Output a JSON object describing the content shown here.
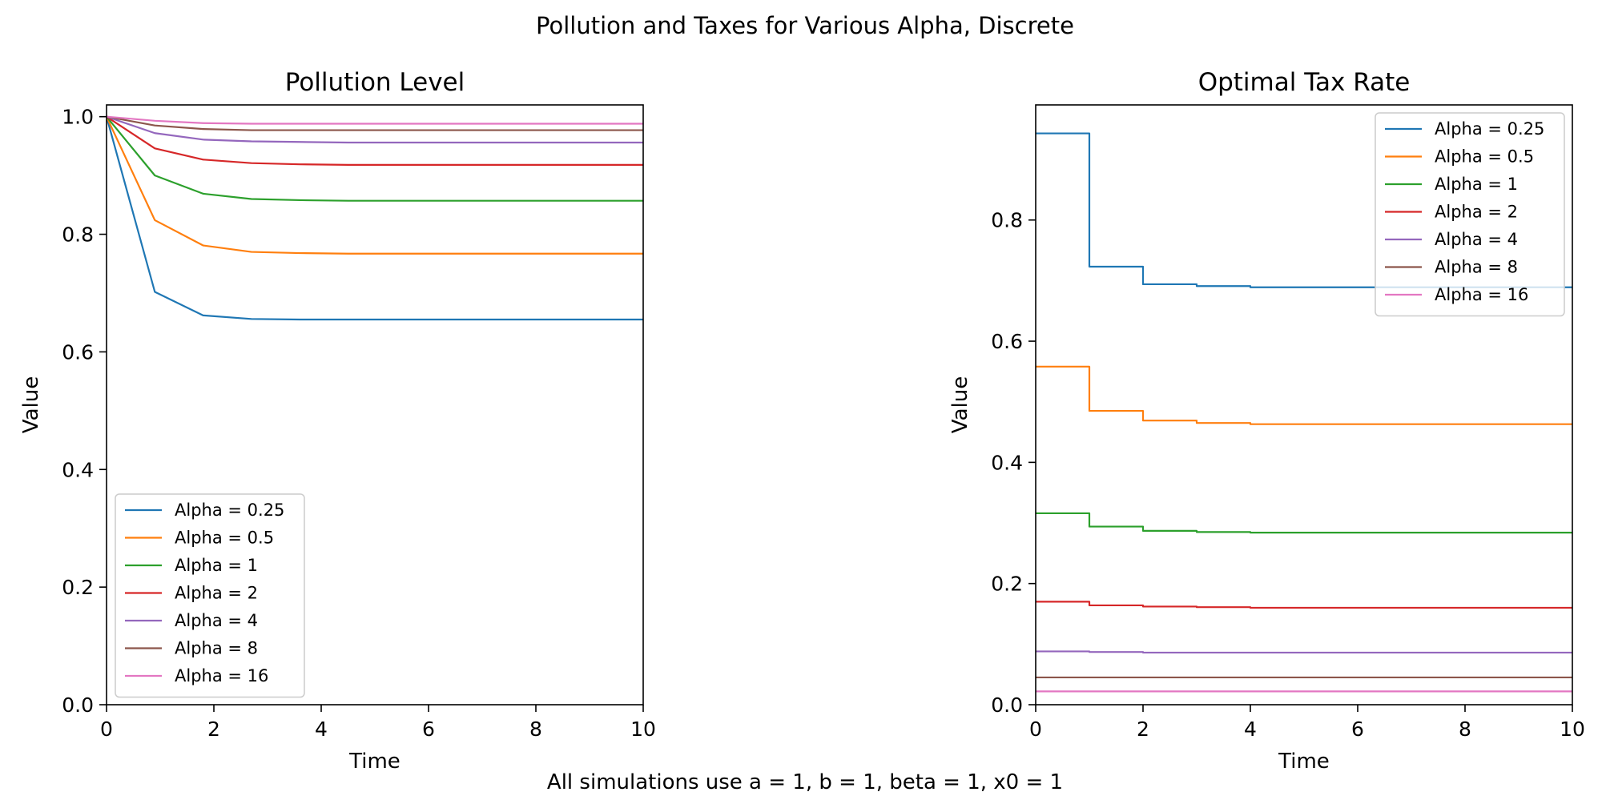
{
  "figure": {
    "suptitle": "Pollution and Taxes for Various Alpha, Discrete",
    "footnote": "All simulations use a = 1, b = 1, beta = 1, x0 = 1"
  },
  "chart_data": [
    {
      "type": "line",
      "title": "Pollution Level",
      "xlabel": "Time",
      "ylabel": "Value",
      "xlim": [
        0,
        10
      ],
      "ylim": [
        0,
        1.02
      ],
      "xticks": [
        "0",
        "2",
        "4",
        "6",
        "8",
        "10"
      ],
      "yticks": [
        "0.0",
        "0.2",
        "0.4",
        "0.6",
        "0.8",
        "1.0"
      ],
      "legend_position": "lower-left",
      "grid": false,
      "x": [
        0,
        0.9,
        1.8,
        2.7,
        3.6,
        4.5,
        5.4,
        6.3,
        7.2,
        8.1,
        9.0,
        10.0
      ],
      "series": [
        {
          "name": "Alpha = 0.25",
          "color": "#1f77b4",
          "values": [
            1.0,
            0.702,
            0.662,
            0.656,
            0.655,
            0.655,
            0.655,
            0.655,
            0.655,
            0.655,
            0.655,
            0.655
          ]
        },
        {
          "name": "Alpha = 0.5",
          "color": "#ff7f0e",
          "values": [
            1.0,
            0.824,
            0.781,
            0.77,
            0.768,
            0.767,
            0.767,
            0.767,
            0.767,
            0.767,
            0.767,
            0.767
          ]
        },
        {
          "name": "Alpha = 1",
          "color": "#2ca02c",
          "values": [
            1.0,
            0.9,
            0.869,
            0.86,
            0.858,
            0.857,
            0.857,
            0.857,
            0.857,
            0.857,
            0.857,
            0.857
          ]
        },
        {
          "name": "Alpha = 2",
          "color": "#d62728",
          "values": [
            1.0,
            0.946,
            0.927,
            0.921,
            0.919,
            0.918,
            0.918,
            0.918,
            0.918,
            0.918,
            0.918,
            0.918
          ]
        },
        {
          "name": "Alpha = 4",
          "color": "#9467bd",
          "values": [
            1.0,
            0.972,
            0.961,
            0.958,
            0.957,
            0.956,
            0.956,
            0.956,
            0.956,
            0.956,
            0.956,
            0.956
          ]
        },
        {
          "name": "Alpha = 8",
          "color": "#8c564b",
          "values": [
            1.0,
            0.985,
            0.979,
            0.977,
            0.977,
            0.977,
            0.977,
            0.977,
            0.977,
            0.977,
            0.977,
            0.977
          ]
        },
        {
          "name": "Alpha = 16",
          "color": "#e377c2",
          "values": [
            1.0,
            0.993,
            0.989,
            0.988,
            0.988,
            0.988,
            0.988,
            0.988,
            0.988,
            0.988,
            0.988,
            0.988
          ]
        }
      ]
    },
    {
      "type": "line",
      "step": true,
      "title": "Optimal Tax Rate",
      "xlabel": "Time",
      "ylabel": "Value",
      "xlim": [
        0,
        10
      ],
      "ylim": [
        0,
        0.99
      ],
      "xticks": [
        "0",
        "2",
        "4",
        "6",
        "8",
        "10"
      ],
      "yticks": [
        "0.0",
        "0.2",
        "0.4",
        "0.6",
        "0.8"
      ],
      "legend_position": "top-right",
      "grid": false,
      "x": [
        0,
        1,
        2,
        3,
        4,
        5,
        6,
        7,
        8,
        9,
        10
      ],
      "series": [
        {
          "name": "Alpha = 0.25",
          "color": "#1f77b4",
          "values": [
            0.943,
            0.723,
            0.694,
            0.691,
            0.689,
            0.689,
            0.689,
            0.689,
            0.689,
            0.689,
            0.689
          ]
        },
        {
          "name": "Alpha = 0.5",
          "color": "#ff7f0e",
          "values": [
            0.558,
            0.485,
            0.469,
            0.465,
            0.463,
            0.463,
            0.463,
            0.463,
            0.463,
            0.463,
            0.463
          ]
        },
        {
          "name": "Alpha = 1",
          "color": "#2ca02c",
          "values": [
            0.316,
            0.294,
            0.287,
            0.285,
            0.284,
            0.284,
            0.284,
            0.284,
            0.284,
            0.284,
            0.284
          ]
        },
        {
          "name": "Alpha = 2",
          "color": "#d62728",
          "values": [
            0.17,
            0.164,
            0.162,
            0.161,
            0.16,
            0.16,
            0.16,
            0.16,
            0.16,
            0.16,
            0.16
          ]
        },
        {
          "name": "Alpha = 4",
          "color": "#9467bd",
          "values": [
            0.088,
            0.087,
            0.086,
            0.086,
            0.086,
            0.086,
            0.086,
            0.086,
            0.086,
            0.086,
            0.086
          ]
        },
        {
          "name": "Alpha = 8",
          "color": "#8c564b",
          "values": [
            0.045,
            0.045,
            0.045,
            0.045,
            0.045,
            0.045,
            0.045,
            0.045,
            0.045,
            0.045,
            0.045
          ]
        },
        {
          "name": "Alpha = 16",
          "color": "#e377c2",
          "values": [
            0.022,
            0.022,
            0.022,
            0.022,
            0.022,
            0.022,
            0.022,
            0.022,
            0.022,
            0.022,
            0.022
          ]
        }
      ]
    }
  ]
}
